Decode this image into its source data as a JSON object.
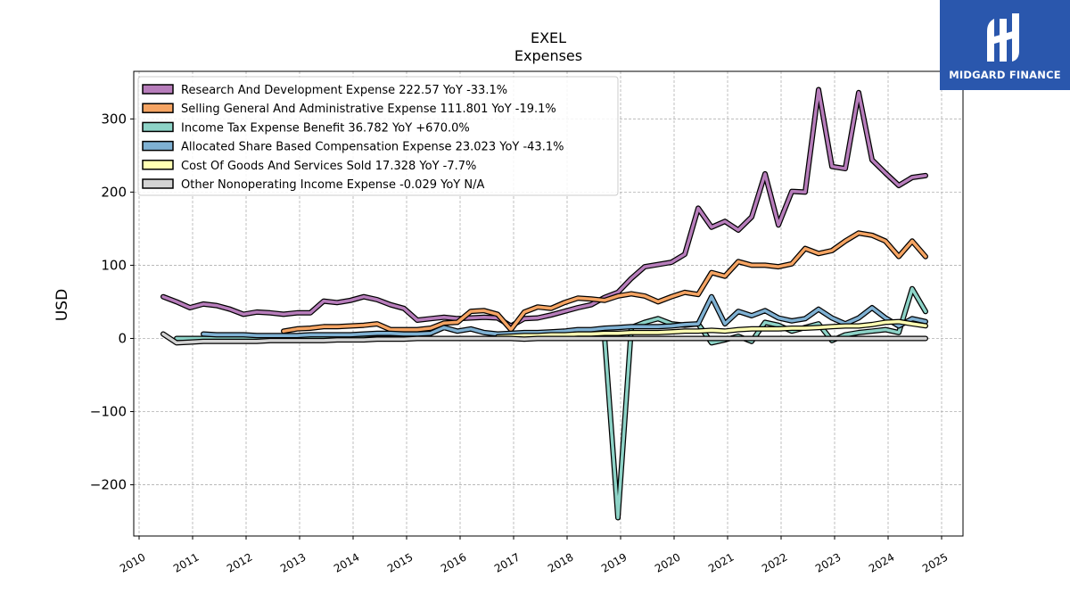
{
  "brand": {
    "name": "MIDGARD FINANCE",
    "color": "#2a57ad"
  },
  "chart_data": {
    "type": "line",
    "title": "EXEL",
    "subtitle": "Expenses",
    "ylabel": "USD",
    "xlabel": "",
    "xlim": [
      2009.9,
      2025.4
    ],
    "ylim": [
      -270,
      365
    ],
    "x_ticks": [
      2010,
      2011,
      2012,
      2013,
      2014,
      2015,
      2016,
      2017,
      2018,
      2019,
      2020,
      2021,
      2022,
      2023,
      2024,
      2025
    ],
    "y_ticks": [
      -200,
      -100,
      0,
      100,
      200,
      300
    ],
    "y_tick_labels": [
      "−200",
      "−100",
      "0",
      "100",
      "200",
      "300"
    ],
    "grid": true,
    "legend_position": "top-left",
    "series": [
      {
        "name": "Research And Development Expense  222.57 YoY -33.1%",
        "color": "#b77dbb",
        "x": [
          2010.45,
          2010.7,
          2010.95,
          2011.2,
          2011.45,
          2011.7,
          2011.95,
          2012.2,
          2012.45,
          2012.7,
          2012.95,
          2013.2,
          2013.45,
          2013.7,
          2013.95,
          2014.2,
          2014.45,
          2014.7,
          2014.95,
          2015.2,
          2015.45,
          2015.7,
          2015.95,
          2016.2,
          2016.45,
          2016.7,
          2016.95,
          2017.2,
          2017.45,
          2017.7,
          2017.95,
          2018.2,
          2018.45,
          2018.7,
          2018.95,
          2019.2,
          2019.45,
          2019.7,
          2019.95,
          2020.2,
          2020.45,
          2020.7,
          2020.95,
          2021.2,
          2021.45,
          2021.7,
          2021.95,
          2022.2,
          2022.45,
          2022.7,
          2022.95,
          2023.2,
          2023.45,
          2023.7,
          2023.95,
          2024.2,
          2024.45,
          2024.7
        ],
        "values": [
          57,
          50,
          42,
          47,
          45,
          40,
          33,
          36,
          35,
          33,
          35,
          35,
          51,
          49,
          52,
          57,
          53,
          46,
          41,
          25,
          27,
          29,
          27,
          28,
          29,
          28,
          17,
          27,
          28,
          32,
          37,
          42,
          46,
          56,
          63,
          82,
          98,
          101,
          104,
          115,
          178,
          152,
          160,
          148,
          166,
          225,
          155,
          201,
          200,
          340,
          235,
          232,
          336,
          244,
          226,
          209,
          220,
          222.57
        ]
      },
      {
        "name": "Selling General And Administrative Expense  111.801 YoY -19.1%",
        "color": "#f5a463",
        "x": [
          2012.7,
          2012.95,
          2013.2,
          2013.45,
          2013.7,
          2013.95,
          2014.2,
          2014.45,
          2014.7,
          2014.95,
          2015.2,
          2015.45,
          2015.7,
          2015.95,
          2016.2,
          2016.45,
          2016.7,
          2016.95,
          2017.2,
          2017.45,
          2017.7,
          2017.95,
          2018.2,
          2018.45,
          2018.7,
          2018.95,
          2019.2,
          2019.45,
          2019.7,
          2019.95,
          2020.2,
          2020.45,
          2020.7,
          2020.95,
          2021.2,
          2021.45,
          2021.7,
          2021.95,
          2022.2,
          2022.45,
          2022.7,
          2022.95,
          2023.2,
          2023.45,
          2023.7,
          2023.95,
          2024.2,
          2024.45,
          2024.7
        ],
        "values": [
          10,
          13,
          14,
          16,
          16,
          17,
          18,
          20,
          12,
          12,
          12,
          14,
          21,
          22,
          37,
          38,
          33,
          12,
          36,
          43,
          41,
          49,
          55,
          54,
          52,
          58,
          61,
          58,
          50,
          57,
          63,
          60,
          90,
          85,
          105,
          100,
          100,
          98,
          102,
          123,
          116,
          120,
          133,
          144,
          141,
          133,
          112,
          133,
          111.801
        ]
      },
      {
        "name": "Income Tax Expense Benefit  36.782 YoY +670.0%",
        "color": "#8dd3c7",
        "x": [
          2010.7,
          2010.95,
          2011.2,
          2011.45,
          2011.7,
          2011.95,
          2012.2,
          2012.45,
          2012.7,
          2012.95,
          2013.2,
          2013.45,
          2013.7,
          2013.95,
          2014.2,
          2014.45,
          2014.7,
          2014.95,
          2015.2,
          2015.45,
          2015.7,
          2015.95,
          2016.2,
          2016.45,
          2016.7,
          2016.95,
          2017.2,
          2017.45,
          2017.7,
          2017.95,
          2018.2,
          2018.45,
          2018.7,
          2018.95,
          2019.2,
          2019.45,
          2019.7,
          2019.95,
          2020.2,
          2020.45,
          2020.7,
          2020.95,
          2021.2,
          2021.45,
          2021.7,
          2021.95,
          2022.2,
          2022.45,
          2022.7,
          2022.95,
          2023.2,
          2023.45,
          2023.7,
          2023.95,
          2024.2,
          2024.45,
          2024.7
        ],
        "values": [
          0,
          0,
          0,
          0,
          0,
          0,
          0,
          0,
          0,
          0,
          0,
          0,
          0,
          0,
          0,
          0,
          0,
          0,
          0,
          0,
          0,
          0,
          0,
          0,
          0,
          0,
          0,
          0,
          0,
          0,
          0,
          0,
          2,
          -245,
          15,
          22,
          27,
          20,
          18,
          20,
          -6,
          -2,
          3,
          -4,
          22,
          18,
          10,
          15,
          20,
          -3,
          5,
          8,
          10,
          12,
          8,
          68,
          36.782
        ]
      },
      {
        "name": "Allocated Share Based Compensation Expense  23.023 YoY -43.1%",
        "color": "#7fb1d3",
        "x": [
          2011.2,
          2011.45,
          2011.7,
          2011.95,
          2012.2,
          2012.45,
          2012.7,
          2012.95,
          2013.2,
          2013.45,
          2013.7,
          2013.95,
          2014.2,
          2014.45,
          2014.7,
          2014.95,
          2015.2,
          2015.45,
          2015.7,
          2015.95,
          2016.2,
          2016.45,
          2016.7,
          2016.95,
          2017.2,
          2017.45,
          2017.7,
          2017.95,
          2018.2,
          2018.45,
          2018.7,
          2018.95,
          2019.2,
          2019.45,
          2019.7,
          2019.95,
          2020.2,
          2020.45,
          2020.7,
          2020.95,
          2021.2,
          2021.45,
          2021.7,
          2021.95,
          2022.2,
          2022.45,
          2022.7,
          2022.95,
          2023.2,
          2023.45,
          2023.7,
          2023.95,
          2024.2,
          2024.45,
          2024.7
        ],
        "values": [
          6,
          5,
          5,
          5,
          4,
          4,
          4,
          4,
          5,
          5,
          5,
          5,
          6,
          7,
          7,
          6,
          6,
          7,
          15,
          10,
          13,
          8,
          6,
          7,
          8,
          8,
          9,
          10,
          12,
          12,
          14,
          15,
          16,
          16,
          16,
          17,
          19,
          20,
          57,
          20,
          37,
          31,
          38,
          28,
          24,
          27,
          40,
          28,
          20,
          28,
          42,
          28,
          17,
          27,
          23.023
        ]
      },
      {
        "name": "Cost Of Goods And Services Sold  17.328 YoY -7.7%",
        "color": "#ffffb3",
        "x": [
          2016.7,
          2016.95,
          2017.2,
          2017.45,
          2017.7,
          2017.95,
          2018.2,
          2018.45,
          2018.7,
          2018.95,
          2019.2,
          2019.45,
          2019.7,
          2019.95,
          2020.2,
          2020.45,
          2020.7,
          2020.95,
          2021.2,
          2021.45,
          2021.7,
          2021.95,
          2022.2,
          2022.45,
          2022.7,
          2022.95,
          2023.2,
          2023.45,
          2023.7,
          2023.95,
          2024.2,
          2024.45,
          2024.7
        ],
        "values": [
          2,
          3,
          4,
          4,
          5,
          5,
          6,
          6,
          7,
          7,
          8,
          8,
          8,
          9,
          10,
          10,
          11,
          10,
          12,
          13,
          13,
          13,
          14,
          14,
          15,
          16,
          17,
          17,
          19,
          22,
          23,
          20,
          17.328
        ]
      },
      {
        "name": "Other Nonoperating Income Expense  -0.029 YoY N/A",
        "color": "#d3d3d3",
        "x": [
          2010.45,
          2010.7,
          2010.95,
          2011.2,
          2011.45,
          2011.7,
          2011.95,
          2012.2,
          2012.45,
          2012.7,
          2012.95,
          2013.2,
          2013.45,
          2013.7,
          2013.95,
          2014.2,
          2014.45,
          2014.7,
          2014.95,
          2015.2,
          2015.45,
          2015.7,
          2015.95,
          2016.2,
          2016.45,
          2016.7,
          2016.95,
          2017.2,
          2017.45,
          2017.7,
          2017.95,
          2018.2,
          2018.45,
          2018.7,
          2018.95,
          2019.2,
          2019.45,
          2019.7,
          2019.95,
          2020.2,
          2020.45,
          2020.7,
          2020.95,
          2021.2,
          2021.45,
          2021.7,
          2021.95,
          2022.2,
          2022.45,
          2022.7,
          2022.95,
          2023.2,
          2023.45,
          2023.7,
          2023.95,
          2024.2,
          2024.45,
          2024.7
        ],
        "values": [
          6,
          -6,
          -5,
          -4,
          -4,
          -4,
          -4,
          -4,
          -3,
          -3,
          -3,
          -3,
          -3,
          -2,
          -2,
          -2,
          -1,
          -1,
          -1,
          0,
          0,
          0,
          0,
          0,
          0,
          0,
          0,
          -1,
          0,
          0,
          0,
          0,
          0,
          0,
          0,
          0,
          0,
          0,
          0,
          0,
          0,
          0,
          0,
          0,
          0,
          0,
          0,
          0,
          0,
          0,
          0,
          0,
          0,
          0,
          0,
          0,
          0,
          -0.029
        ]
      }
    ]
  }
}
